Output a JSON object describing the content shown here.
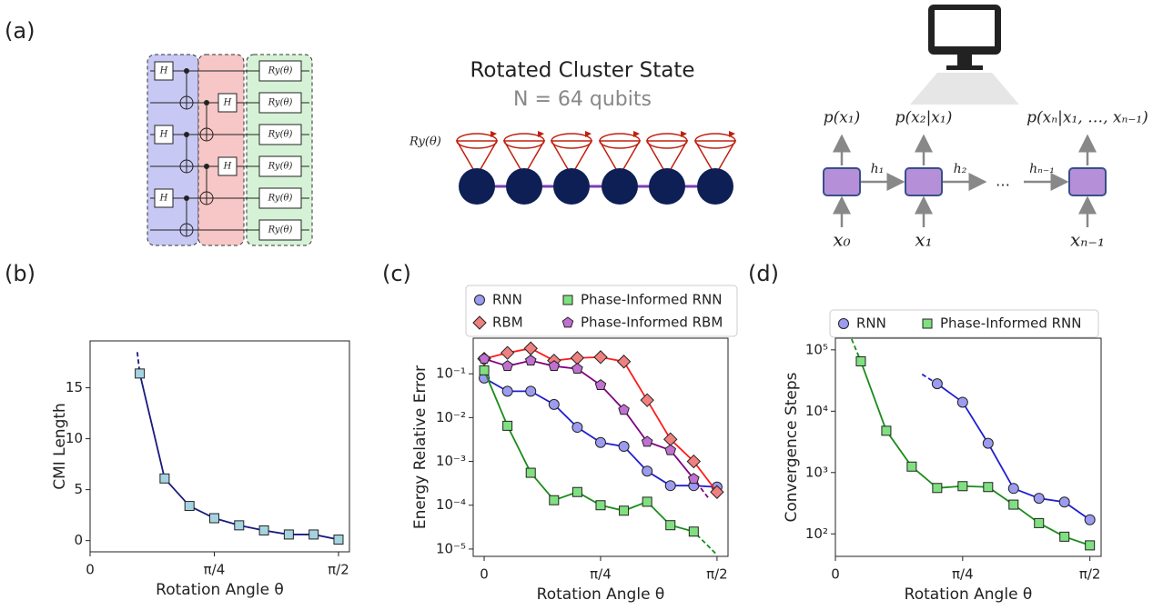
{
  "panel_labels": [
    "(a)",
    "(b)",
    "(c)",
    "(d)"
  ],
  "diagram": {
    "circuit": {
      "gate_h": "H",
      "gate_ry": "Ry(θ)"
    },
    "cluster": {
      "title": "Rotated Cluster State",
      "subtitle": "N = 64 qubits",
      "rotation_label": "Ry(θ)"
    },
    "rnn": {
      "outputs": [
        "p(x₁)",
        "p(x₂|x₁)",
        "p(xₙ|x₁, …, xₙ₋₁)"
      ],
      "hidden": [
        "h₁",
        "h₂",
        "hₙ₋₁"
      ],
      "inputs": [
        "x₀",
        "x₁",
        "xₙ₋₁"
      ],
      "ellipsis": "…"
    }
  },
  "chart_data": [
    {
      "type": "line",
      "xlabel": "Rotation Angle θ",
      "ylabel": "CMI Length",
      "xlim": [
        0,
        1.64
      ],
      "ylim": [
        -1.1,
        19.6
      ],
      "log_y": false,
      "xticks": [
        0,
        {
          "value": 0.7854,
          "label": "π/4"
        },
        {
          "value": 1.5708,
          "label": "π/2"
        }
      ],
      "yticks": [
        0,
        5,
        10,
        15
      ],
      "series": [
        {
          "marker": "square",
          "color": "#1a1a80",
          "marker_fill": "#a6d3e0",
          "x": [
            0.3142,
            0.4712,
            0.6283,
            0.7854,
            0.9425,
            1.0996,
            1.2566,
            1.4137,
            1.5708
          ],
          "values": [
            16.4,
            6.1,
            3.4,
            2.2,
            1.5,
            1.0,
            0.6,
            0.6,
            0.1
          ],
          "extension": {
            "x": 0.2985,
            "value": 18.5
          }
        }
      ]
    },
    {
      "type": "line",
      "xlabel": "Rotation Angle θ",
      "ylabel": "Energy Relative Error",
      "xlim": [
        -0.074,
        1.645
      ],
      "ylim": [
        6.8e-06,
        0.65
      ],
      "log_y": true,
      "legend": "above",
      "xticks": [
        0,
        {
          "value": 0.7854,
          "label": "π/4"
        },
        {
          "value": 1.5708,
          "label": "π/2"
        }
      ],
      "yticks": [
        {
          "value": 1e-05,
          "label": "10⁻⁵"
        },
        {
          "value": 0.0001,
          "label": "10⁻⁴"
        },
        {
          "value": 0.001,
          "label": "10⁻³"
        },
        {
          "value": 0.01,
          "label": "10⁻²"
        },
        {
          "value": 0.1,
          "label": "10⁻¹"
        }
      ],
      "series": [
        {
          "name": "RNN",
          "marker": "circle",
          "color": "#1f1fd0",
          "marker_fill": "#9b9bf0",
          "x": [
            0,
            0.1571,
            0.3142,
            0.4712,
            0.6283,
            0.7854,
            0.9425,
            1.0996,
            1.2566,
            1.4137,
            1.5708
          ],
          "values": [
            0.08,
            0.04,
            0.04,
            0.02,
            0.006,
            0.0027,
            0.0022,
            0.0006,
            0.00028,
            0.00028,
            0.00026
          ]
        },
        {
          "name": "RBM",
          "marker": "diamond",
          "color": "#ff1a1a",
          "marker_fill": "#f08080",
          "x": [
            0,
            0.1571,
            0.3142,
            0.4712,
            0.6283,
            0.7854,
            0.9425,
            1.0996,
            1.2566,
            1.4137,
            1.5708
          ],
          "values": [
            0.22,
            0.3,
            0.38,
            0.2,
            0.23,
            0.24,
            0.19,
            0.025,
            0.0032,
            0.001,
            0.0002
          ]
        },
        {
          "name": "Phase-Informed RNN",
          "marker": "square",
          "color": "#1a8c1a",
          "marker_fill": "#80e080",
          "x": [
            0,
            0.1571,
            0.3142,
            0.4712,
            0.6283,
            0.7854,
            0.9425,
            1.0996,
            1.2566,
            1.4137
          ],
          "values": [
            0.12,
            0.0065,
            0.00055,
            0.00013,
            0.0002,
            0.0001,
            7.5e-05,
            0.00012,
            3.5e-05,
            2.5e-05
          ],
          "extension": {
            "x": 1.56,
            "value": 8e-06
          }
        },
        {
          "name": "Phase-Informed RBM",
          "marker": "pentagon",
          "color": "#800080",
          "marker_fill": "#c070d0",
          "x": [
            0,
            0.1571,
            0.3142,
            0.4712,
            0.6283,
            0.7854,
            0.9425,
            1.0996,
            1.2566,
            1.4137
          ],
          "values": [
            0.22,
            0.15,
            0.2,
            0.15,
            0.13,
            0.055,
            0.015,
            0.0028,
            0.0018,
            0.0004
          ],
          "extension": {
            "x": 1.51,
            "value": 0.00015
          }
        }
      ]
    },
    {
      "type": "line",
      "xlabel": "Rotation Angle θ",
      "ylabel": "Convergence Steps",
      "xlim": [
        0,
        1.64
      ],
      "ylim": [
        43,
        155000
      ],
      "log_y": true,
      "legend": "above",
      "xticks": [
        0,
        {
          "value": 0.7854,
          "label": "π/4"
        },
        {
          "value": 1.5708,
          "label": "π/2"
        }
      ],
      "yticks": [
        {
          "value": 100,
          "label": "10²"
        },
        {
          "value": 1000,
          "label": "10³"
        },
        {
          "value": 10000,
          "label": "10⁴"
        },
        {
          "value": 100000,
          "label": "10⁵"
        }
      ],
      "series": [
        {
          "name": "RNN",
          "marker": "circle",
          "color": "#1f1fd0",
          "marker_fill": "#9b9bf0",
          "x": [
            0.6283,
            0.7854,
            0.9425,
            1.0996,
            1.2566,
            1.4137,
            1.5708
          ],
          "values": [
            28000,
            14000,
            3000,
            550,
            380,
            330,
            170
          ],
          "extension": {
            "x": 0.535,
            "value": 40000
          }
        },
        {
          "name": "Phase-Informed RNN",
          "marker": "square",
          "color": "#1a8c1a",
          "marker_fill": "#80e080",
          "x": [
            0.1571,
            0.3142,
            0.4712,
            0.6283,
            0.7854,
            0.9425,
            1.0996,
            1.2566,
            1.4137,
            1.5708
          ],
          "values": [
            65000,
            4800,
            1250,
            560,
            600,
            580,
            300,
            150,
            90,
            65
          ],
          "extension": {
            "x": 0.1,
            "value": 150000
          }
        }
      ]
    }
  ]
}
